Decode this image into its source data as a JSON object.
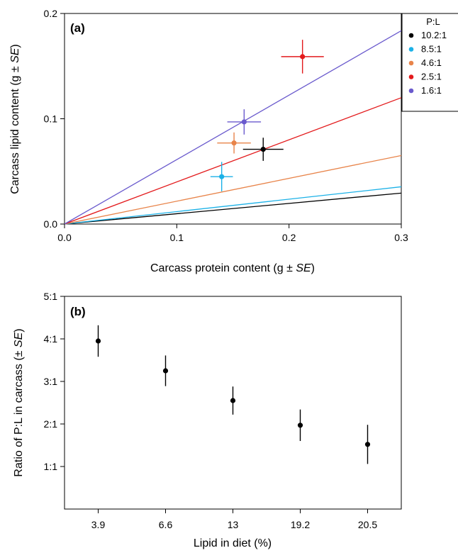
{
  "chart_data": [
    {
      "type": "scatter",
      "panel_label": "(a)",
      "xlabel_main": "Carcass protein content (g ± ",
      "xlabel_italic": "SE",
      "xlabel_end": ")",
      "ylabel_main": "Carcass lipid content (g ± ",
      "ylabel_italic": "SE",
      "ylabel_end": ")",
      "xlim": [
        0,
        0.3
      ],
      "ylim": [
        0,
        0.2
      ],
      "x_ticks": [
        0,
        0.1,
        0.2,
        0.3
      ],
      "x_tick_labels": [
        "0.0",
        "0.1",
        "0.2",
        "0.3"
      ],
      "y_ticks": [
        0,
        0.1,
        0.2
      ],
      "y_tick_labels": [
        "0.0",
        "0.1",
        "0.2"
      ],
      "grid": false,
      "legend": {
        "title": "P:L",
        "position": "right, outside top"
      },
      "series": [
        {
          "name": "10.2:1",
          "color": "#000000",
          "x": 0.177,
          "y": 0.071,
          "x_err": 0.018,
          "y_err": 0.011,
          "line_slope": 0.098
        },
        {
          "name": "8.5:1",
          "color": "#1bb1e7",
          "x": 0.14,
          "y": 0.045,
          "x_err": 0.01,
          "y_err": 0.014,
          "line_slope": 0.118
        },
        {
          "name": "4.6:1",
          "color": "#e8844a",
          "x": 0.151,
          "y": 0.077,
          "x_err": 0.015,
          "y_err": 0.01,
          "line_slope": 0.217
        },
        {
          "name": "2.5:1",
          "color": "#e31a1c",
          "x": 0.212,
          "y": 0.159,
          "x_err": 0.019,
          "y_err": 0.016,
          "line_slope": 0.4
        },
        {
          "name": "1.6:1",
          "color": "#6a5acd",
          "x": 0.16,
          "y": 0.097,
          "x_err": 0.015,
          "y_err": 0.012,
          "line_slope": 0.612
        }
      ]
    },
    {
      "type": "scatter",
      "panel_label": "(b)",
      "xlabel": "Lipid in diet (%)",
      "ylabel_main": "Ratio of P:L in carcass (± ",
      "ylabel_italic": "SE",
      "ylabel_end": ")",
      "categories": [
        "3.9",
        "6.6",
        "13",
        "19.2",
        "20.5"
      ],
      "ylim": [
        0,
        5
      ],
      "y_ticks": [
        1,
        2,
        3,
        4,
        5
      ],
      "y_tick_labels": [
        "1:1",
        "2:1",
        "3:1",
        "4:1",
        "5:1"
      ],
      "grid": false,
      "series": [
        {
          "color": "#000000",
          "values": [
            3.95,
            3.25,
            2.55,
            1.97,
            1.52
          ],
          "errors": [
            0.37,
            0.36,
            0.33,
            0.37,
            0.46
          ]
        }
      ]
    }
  ]
}
